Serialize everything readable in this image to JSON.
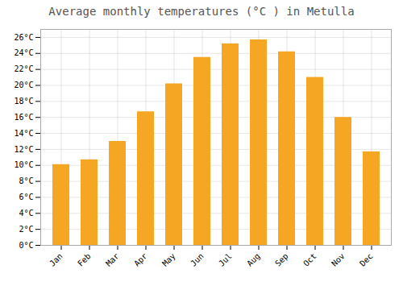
{
  "chart_data": {
    "type": "bar",
    "title": "Average monthly temperatures (°C ) in Metulla",
    "categories": [
      "Jan",
      "Feb",
      "Mar",
      "Apr",
      "May",
      "Jun",
      "Jul",
      "Aug",
      "Sep",
      "Oct",
      "Nov",
      "Dec"
    ],
    "values": [
      10.1,
      10.7,
      13.0,
      16.7,
      20.2,
      23.5,
      25.2,
      25.7,
      24.2,
      21.0,
      16.0,
      11.7
    ],
    "color": "#F5A623",
    "ylim": [
      0,
      27
    ],
    "yticks": [
      {
        "value": 0,
        "label": "0°C"
      },
      {
        "value": 2,
        "label": "2°C"
      },
      {
        "value": 4,
        "label": "4°C"
      },
      {
        "value": 6,
        "label": "6°C"
      },
      {
        "value": 8,
        "label": "8°C"
      },
      {
        "value": 10,
        "label": "10°C"
      },
      {
        "value": 12,
        "label": "12°C"
      },
      {
        "value": 14,
        "label": "14°C"
      },
      {
        "value": 16,
        "label": "16°C"
      },
      {
        "value": 18,
        "label": "18°C"
      },
      {
        "value": 20,
        "label": "20°C"
      },
      {
        "value": 22,
        "label": "22°C"
      },
      {
        "value": 24,
        "label": "24°C"
      },
      {
        "value": 26,
        "label": "26°C"
      }
    ],
    "grid": true
  }
}
